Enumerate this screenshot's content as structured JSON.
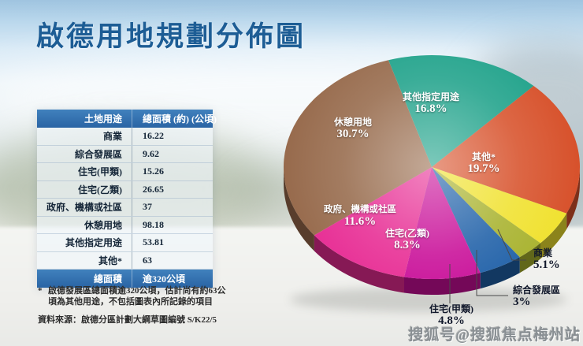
{
  "title": "啟德用地規劃分佈圖",
  "table": {
    "headers": [
      "土地用途",
      "總面積 (約) (公頃)"
    ],
    "rows": [
      [
        "商業",
        "16.22"
      ],
      [
        "綜合發展區",
        "9.62"
      ],
      [
        "住宅(甲類)",
        "15.26"
      ],
      [
        "住宅(乙類)",
        "26.65"
      ],
      [
        "政府、機構或社區",
        "37"
      ],
      [
        "休憩用地",
        "98.18"
      ],
      [
        "其他指定用途",
        "53.81"
      ],
      [
        "其他*",
        "63"
      ]
    ],
    "total_label": "總面積",
    "total_value": "逾320公頃"
  },
  "footnote": {
    "marker": "*",
    "text": "啟德發展區總面積逾320公頃，估計尚有約63公頃為其他用途，不包括圖表內所記錄的項目"
  },
  "source": "資料來源：啟德分區計劃大綱草圖編號 S/K22/5",
  "watermark": "搜狐号@搜狐焦点梅州站",
  "chart_data": {
    "type": "pie",
    "style": "3d",
    "title": "啟德用地規劃分佈圖",
    "direction": "clockwise",
    "start_angle_deg": -17,
    "labels": [
      "其他指定用途",
      "其他*",
      "商業",
      "綜合發展區",
      "住宅(甲類)",
      "住宅(乙類)",
      "政府、機構或社區",
      "休憩用地"
    ],
    "values": [
      16.8,
      19.7,
      5.1,
      3,
      4.8,
      8.3,
      11.6,
      30.7
    ],
    "value_labels": [
      "16.8%",
      "19.7%",
      "5.1%",
      "3%",
      "4.8%",
      "8.3%",
      "11.6%",
      "30.7%"
    ],
    "colors": [
      "#1FA28A",
      "#D7512B",
      "#F0E12E",
      "#A8B22D",
      "#1F60A8",
      "#C80D98",
      "#E72B93",
      "#976A4C"
    ],
    "legend_position": "labels-on-slices"
  },
  "colors": {
    "title": "#1d5d95",
    "table_header_bg": "#2f6cac",
    "note_text": "#2d2d2d"
  }
}
